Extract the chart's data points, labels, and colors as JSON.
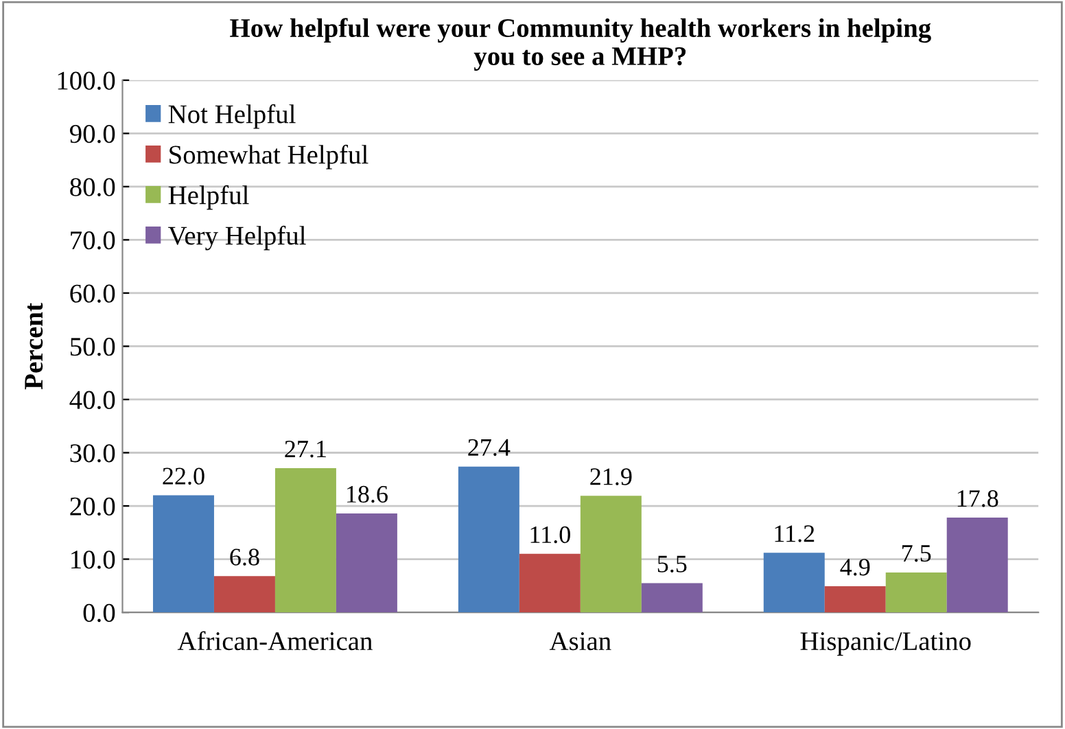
{
  "chart_data": {
    "type": "bar",
    "title": "How helpful were your Community health workers in helping\nyou to see a MHP?",
    "ylabel": "Percent",
    "categories": [
      "African-American",
      "Asian",
      "Hispanic/Latino"
    ],
    "series": [
      {
        "name": "Not Helpful",
        "color": "#4a7ebb",
        "values": [
          22.0,
          27.4,
          11.2
        ],
        "value_labels": [
          "22.0",
          "27.4",
          "11.2"
        ]
      },
      {
        "name": "Somewhat Helpful",
        "color": "#be4b48",
        "values": [
          6.8,
          11.0,
          4.9
        ],
        "value_labels": [
          "6.8",
          "11.0",
          "4.9"
        ]
      },
      {
        "name": "Helpful",
        "color": "#98b954",
        "values": [
          27.1,
          21.9,
          7.5
        ],
        "value_labels": [
          "27.1",
          "21.9",
          "7.5"
        ]
      },
      {
        "name": "Very Helpful",
        "color": "#7d60a0",
        "values": [
          18.6,
          5.5,
          17.8
        ],
        "value_labels": [
          "18.6",
          "5.5",
          "17.8"
        ]
      }
    ],
    "ylim": [
      0,
      100
    ],
    "yticks": [
      {
        "value": 0,
        "label": "0.0"
      },
      {
        "value": 10,
        "label": "10.0"
      },
      {
        "value": 20,
        "label": "20.0"
      },
      {
        "value": 30,
        "label": "30.0"
      },
      {
        "value": 40,
        "label": "40.0"
      },
      {
        "value": 50,
        "label": "50.0"
      },
      {
        "value": 60,
        "label": "60.0"
      },
      {
        "value": 70,
        "label": "70.0"
      },
      {
        "value": 80,
        "label": "80.0"
      },
      {
        "value": 90,
        "label": "90.0"
      },
      {
        "value": 100,
        "label": "100.0"
      }
    ],
    "grid": "y",
    "legend": "top left"
  }
}
